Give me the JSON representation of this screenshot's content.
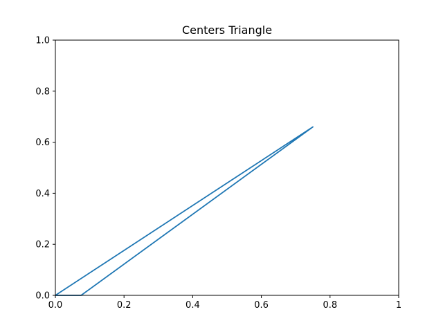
{
  "chart_data": {
    "type": "line",
    "title": "Centers Triangle",
    "xlabel": "",
    "ylabel": "",
    "xlim": [
      0,
      1
    ],
    "ylim": [
      0,
      1
    ],
    "x_ticks": [
      0.0,
      0.2,
      0.4,
      0.6,
      0.8,
      1.0
    ],
    "x_tick_labels": [
      "0.0",
      "0.2",
      "0.4",
      "0.6",
      "0.8",
      "1"
    ],
    "y_ticks": [
      0.0,
      0.2,
      0.4,
      0.6,
      0.8,
      1.0
    ],
    "y_tick_labels": [
      "0.0",
      "0.2",
      "0.4",
      "0.6",
      "0.8",
      "1.0"
    ],
    "grid": false,
    "series": [
      {
        "color": "#1f77b4",
        "x": [
          0.0,
          0.075,
          0.75,
          0.0
        ],
        "y": [
          0.0,
          0.0,
          0.66,
          0.0
        ]
      }
    ]
  }
}
